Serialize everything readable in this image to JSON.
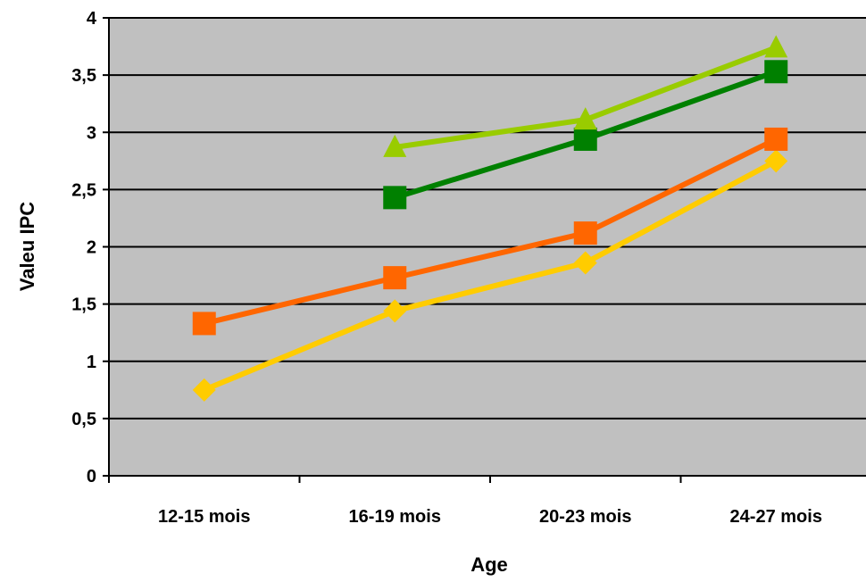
{
  "chart_data": {
    "type": "line",
    "title": "",
    "xlabel": "Age",
    "ylabel": "Valeu IPC",
    "categories": [
      "12-15 mois",
      "16-19 mois",
      "20-23 mois",
      "24-27 mois"
    ],
    "ylim": [
      0,
      4
    ],
    "yticks": [
      "0",
      "0,5",
      "1",
      "1,5",
      "2",
      "2,5",
      "3",
      "3,5",
      "4"
    ],
    "grid": true,
    "legend": "none",
    "background": "#c0c0c0",
    "series": [
      {
        "color": "#ffcc00",
        "marker": "diamond",
        "values": [
          0.75,
          1.44,
          1.86,
          2.75
        ]
      },
      {
        "color": "#ff6600",
        "marker": "square",
        "values": [
          1.33,
          1.73,
          2.12,
          2.94
        ]
      },
      {
        "color": "#008000",
        "marker": "square",
        "values": [
          null,
          2.43,
          2.94,
          3.53
        ]
      },
      {
        "color": "#99cc00",
        "marker": "triangle",
        "values": [
          null,
          2.87,
          3.11,
          3.74
        ]
      }
    ]
  }
}
